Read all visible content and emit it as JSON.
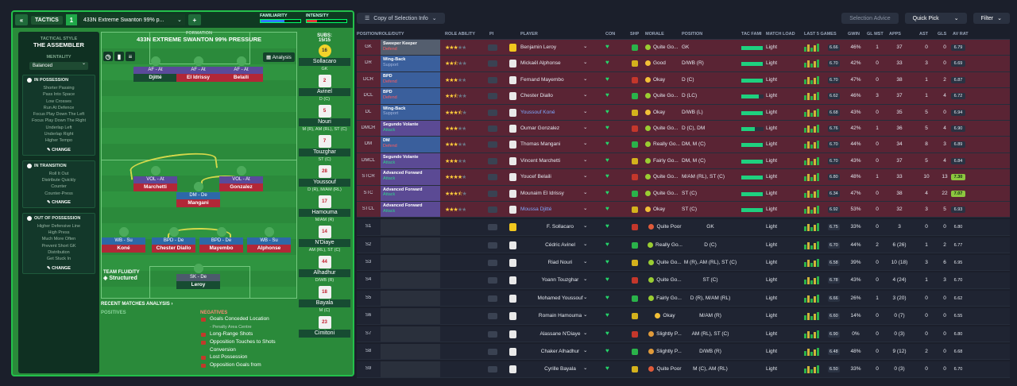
{
  "header": {
    "back": "«",
    "tactics_label": "TACTICS",
    "tactic_number": "1",
    "tactic_name": "433N Extreme Swanton 99% p...",
    "add": "+",
    "familiarity": "FAMILIARITY",
    "intensity": "INTENSITY"
  },
  "sidebar": {
    "style_label": "TACTICAL STYLE",
    "style_value": "THE ASSEMBLER",
    "mentality_label": "MENTALITY",
    "mentality_value": "Balanced",
    "in_possession": {
      "title": "IN POSSESSION",
      "items": [
        "Shorter Passing",
        "Pass Into Space",
        "Low Crosses",
        "Run At Defence",
        "Focus Play Down The Left",
        "Focus Play Down The Right",
        "Underlap Left",
        "Underlap Right",
        "Higher Tempo"
      ],
      "change": "CHANGE"
    },
    "in_transition": {
      "title": "IN TRANSITION",
      "items": [
        "Roll It Out",
        "Distribute Quickly",
        "Counter",
        "Counter-Press"
      ],
      "change": "CHANGE"
    },
    "out_of_possession": {
      "title": "OUT OF POSSESSION",
      "items": [
        "Higher Defensive Line",
        "High Press",
        "Much More Often",
        "Prevent Short GK",
        "Distribution",
        "Get Stuck In"
      ],
      "change": "CHANGE"
    }
  },
  "formation": {
    "label": "FORMATION",
    "name": "433N EXTREME SWANTON 99% PRESSURE",
    "analysis": "Analysis",
    "team_fluidity_label": "TEAM FLUIDITY",
    "team_fluidity": "Structured"
  },
  "pitch_players": [
    {
      "role": "AF - At",
      "name": "Djitté"
    },
    {
      "role": "AF - At",
      "name": "El Idrissy"
    },
    {
      "role": "AF - At",
      "name": "Belaili"
    },
    {
      "role": "VOL - At",
      "name": "Marchetti"
    },
    {
      "role": "DM - De",
      "name": "Mangani"
    },
    {
      "role": "VOL - At",
      "name": "Gonzalez"
    },
    {
      "role": "WB - Su",
      "name": "Koné"
    },
    {
      "role": "BPD - De",
      "name": "Chester Diallo"
    },
    {
      "role": "BPD - De",
      "name": "Mayembo"
    },
    {
      "role": "WB - Su",
      "name": "Alphonse"
    },
    {
      "role": "SK - De",
      "name": "Leroy"
    }
  ],
  "subs": {
    "label": "SUBS:",
    "count": "15/15",
    "list": [
      {
        "num": "16",
        "name": "Sollacaro",
        "pos": "GK"
      },
      {
        "num": "2",
        "name": "Avinel",
        "pos": "D (C)"
      },
      {
        "num": "5",
        "name": "Nouri",
        "pos": "M (R), AM (RL), ST (C)"
      },
      {
        "num": "7",
        "name": "Touzghar",
        "pos": "ST (C)"
      },
      {
        "num": "28",
        "name": "Youssouf",
        "pos": "D (R), M/AM (RL)"
      },
      {
        "num": "17",
        "name": "Hamouma",
        "pos": "M/AM (R)"
      },
      {
        "num": "14",
        "name": "N'Diaye",
        "pos": "AM (RL), ST (C)"
      },
      {
        "num": "44",
        "name": "Alhadhur",
        "pos": "D/WB (R)"
      },
      {
        "num": "18",
        "name": "Bayala",
        "pos": "M (C)"
      },
      {
        "num": "23",
        "name": "Cimitoni",
        "pos": ""
      }
    ]
  },
  "recent": {
    "title": "RECENT MATCHES ANALYSIS",
    "positives": "POSITIVES",
    "negatives": "NEGATIVES",
    "neg_items": [
      "Goals Conceded Location",
      "- Penalty Area Centre",
      "Long-Range Shots",
      "Opposition Touches to Shots",
      "Conversion",
      "Lost Possession",
      "Opposition Goals from"
    ]
  },
  "right_top": {
    "view": "Copy of Selection Info",
    "selection_advice": "Selection Advice",
    "quick_pick": "Quick Pick",
    "filter": "Filter"
  },
  "columns": [
    "POSITION/ROLE/DUTY",
    "ROLE ABILITY",
    "PI",
    "PLAYER",
    "CON",
    "SHP",
    "MORALE",
    "POSITION",
    "TAC FAMI",
    "MATCH LOAD",
    "LAST 5 GAMES",
    "GWIN",
    "GL MST",
    "APPS",
    "AST",
    "GLS",
    "AV RAT"
  ],
  "rows": [
    {
      "pos": "GK",
      "role": "Sweeper Keeper",
      "duty": "Defend",
      "dcls": "def",
      "stars": 3,
      "name": "Benjamin Leroy",
      "morale": "Quite Go...",
      "mc": "#9acd32",
      "ppos": "GK",
      "tac": 0.95,
      "load": "Light",
      "av5": "6.66",
      "gwin": "46%",
      "glm": "1",
      "apps": "37",
      "ast": "0",
      "gls": "0",
      "rat": "6.79",
      "rc": ""
    },
    {
      "pos": "DR",
      "role": "Wing-Back",
      "duty": "Support",
      "dcls": "sup",
      "stars": 2.5,
      "name": "Mickaël Alphonse",
      "morale": "Good",
      "mc": "#f2c037",
      "ppos": "D/WB (R)",
      "tac": 0.95,
      "load": "Light",
      "av5": "6.70",
      "gwin": "42%",
      "glm": "0",
      "apps": "33",
      "ast": "3",
      "gls": "0",
      "rat": "6.69",
      "rc": ""
    },
    {
      "pos": "DCR",
      "role": "BPD",
      "duty": "Defend",
      "dcls": "def",
      "stars": 3,
      "name": "Fernand Mayembo",
      "morale": "Okay",
      "mc": "#f2c037",
      "ppos": "D (C)",
      "tac": 0.95,
      "load": "Light",
      "av5": "6.70",
      "gwin": "47%",
      "glm": "0",
      "apps": "38",
      "ast": "1",
      "gls": "2",
      "rat": "6.87",
      "rc": ""
    },
    {
      "pos": "DCL",
      "role": "BPD",
      "duty": "Defend",
      "dcls": "def",
      "stars": 2.5,
      "name": "Chester Diallo",
      "morale": "Quite Go...",
      "mc": "#9acd32",
      "ppos": "D (LC)",
      "tac": 0.8,
      "load": "Light",
      "av5": "6.62",
      "gwin": "46%",
      "glm": "3",
      "apps": "37",
      "ast": "1",
      "gls": "4",
      "rat": "6.72",
      "rc": ""
    },
    {
      "pos": "DL",
      "role": "Wing-Back",
      "duty": "Support",
      "dcls": "sup",
      "stars": 3.5,
      "name": "Youssouf Koné",
      "lnk": true,
      "morale": "Okay",
      "mc": "#f2c037",
      "ppos": "D/WB (L)",
      "tac": 0.95,
      "load": "Light",
      "av5": "6.68",
      "gwin": "43%",
      "glm": "0",
      "apps": "35",
      "ast": "5",
      "gls": "0",
      "rat": "6.94",
      "rc": ""
    },
    {
      "pos": "DMCR",
      "role": "Segundo Volante",
      "duty": "Attack",
      "dcls": "att",
      "stars": 3,
      "name": "Oumar Gonzalez",
      "morale": "Quite Go...",
      "mc": "#9acd32",
      "ppos": "D (C), DM",
      "tac": 0.6,
      "load": "Light",
      "av5": "6.76",
      "gwin": "42%",
      "glm": "1",
      "apps": "36",
      "ast": "5",
      "gls": "4",
      "rat": "6.90",
      "rc": ""
    },
    {
      "pos": "DM",
      "role": "DM",
      "duty": "Defend",
      "dcls": "def",
      "stars": 3,
      "name": "Thomas Mangani",
      "morale": "Really Go...",
      "mc": "#9acd32",
      "ppos": "DM, M (C)",
      "tac": 0.95,
      "load": "Light",
      "av5": "6.70",
      "gwin": "44%",
      "glm": "0",
      "apps": "34",
      "ast": "8",
      "gls": "3",
      "rat": "6.89",
      "rc": ""
    },
    {
      "pos": "DMCL",
      "role": "Segundo Volante",
      "duty": "Attack",
      "dcls": "att",
      "stars": 3,
      "name": "Vincent Marchetti",
      "morale": "Fairly Go...",
      "mc": "#9acd32",
      "ppos": "DM, M (C)",
      "tac": 0.95,
      "load": "Light",
      "av5": "6.70",
      "gwin": "43%",
      "glm": "0",
      "apps": "37",
      "ast": "5",
      "gls": "4",
      "rat": "6.84",
      "rc": ""
    },
    {
      "pos": "STCR",
      "role": "Advanced Forward",
      "duty": "Attack",
      "dcls": "att",
      "stars": 4,
      "name": "Youcef Belaili",
      "morale": "Quite Go...",
      "mc": "#9acd32",
      "ppos": "M/AM (RL), ST (C)",
      "tac": 0.95,
      "load": "Light",
      "av5": "6.80",
      "gwin": "48%",
      "glm": "1",
      "apps": "33",
      "ast": "10",
      "gls": "13",
      "rat": "7.30",
      "rc": "hi"
    },
    {
      "pos": "STC",
      "role": "Advanced Forward",
      "duty": "Attack",
      "dcls": "att",
      "stars": 3.5,
      "name": "Mounaim El Idrissy",
      "morale": "Quite Go...",
      "mc": "#9acd32",
      "ppos": "ST (C)",
      "tac": 0.95,
      "load": "Light",
      "av5": "6.34",
      "gwin": "47%",
      "glm": "0",
      "apps": "38",
      "ast": "4",
      "gls": "22",
      "rat": "7.07",
      "rc": "hi"
    },
    {
      "pos": "STCL",
      "role": "Advanced Forward",
      "duty": "Attack",
      "dcls": "att",
      "stars": 3,
      "name": "Moussa Djitté",
      "lnk": true,
      "morale": "Okay",
      "mc": "#f2c037",
      "ppos": "ST (C)",
      "tac": 0.95,
      "load": "Light",
      "av5": "6.92",
      "gwin": "53%",
      "glm": "0",
      "apps": "32",
      "ast": "3",
      "gls": "5",
      "rat": "6.93",
      "rc": ""
    },
    {
      "pos": "S1",
      "role": "",
      "duty": "",
      "dcls": "",
      "stars": 0,
      "name": "F. Sollacaro",
      "morale": "Quite Poor",
      "mc": "#e05b3a",
      "ppos": "GK",
      "tac": 0,
      "load": "Light",
      "av5": "6.75",
      "gwin": "33%",
      "glm": "0",
      "apps": "3",
      "ast": "0",
      "gls": "0",
      "rat": "6.80",
      "rc": "nb"
    },
    {
      "pos": "S2",
      "role": "",
      "duty": "",
      "dcls": "",
      "stars": 0,
      "name": "Cédric Avinel",
      "morale": "Really Go...",
      "mc": "#9acd32",
      "ppos": "D (C)",
      "tac": 0,
      "load": "Light",
      "av5": "6.70",
      "gwin": "44%",
      "glm": "2",
      "apps": "6 (26)",
      "ast": "1",
      "gls": "2",
      "rat": "6.77",
      "rc": "nb"
    },
    {
      "pos": "S3",
      "role": "",
      "duty": "",
      "dcls": "",
      "stars": 0,
      "name": "Riad Nouri",
      "morale": "Quite Go...",
      "mc": "#9acd32",
      "ppos": "M (R), AM (RL), ST (C)",
      "tac": 0,
      "load": "Light",
      "av5": "6.58",
      "gwin": "39%",
      "glm": "0",
      "apps": "10 (18)",
      "ast": "3",
      "gls": "6",
      "rat": "6.95",
      "rc": "nb"
    },
    {
      "pos": "S4",
      "role": "",
      "duty": "",
      "dcls": "",
      "stars": 0,
      "name": "Yoann Touzghar",
      "morale": "Quite Go...",
      "mc": "#9acd32",
      "ppos": "ST (C)",
      "tac": 0,
      "load": "Light",
      "av5": "6.78",
      "gwin": "43%",
      "glm": "0",
      "apps": "4 (24)",
      "ast": "1",
      "gls": "3",
      "rat": "6.70",
      "rc": "nb"
    },
    {
      "pos": "S5",
      "role": "",
      "duty": "",
      "dcls": "",
      "stars": 0,
      "name": "Mohamed Youssouf",
      "morale": "Fairly Go...",
      "mc": "#9acd32",
      "ppos": "D (R), M/AM (RL)",
      "tac": 0,
      "load": "Light",
      "av5": "6.66",
      "gwin": "26%",
      "glm": "1",
      "apps": "3 (20)",
      "ast": "0",
      "gls": "0",
      "rat": "6.62",
      "rc": "nb"
    },
    {
      "pos": "S6",
      "role": "",
      "duty": "",
      "dcls": "",
      "stars": 0,
      "name": "Romain Hamouma",
      "morale": "Okay",
      "mc": "#f2c037",
      "ppos": "M/AM (R)",
      "tac": 0,
      "load": "Light",
      "av5": "6.60",
      "gwin": "14%",
      "glm": "0",
      "apps": "0 (7)",
      "ast": "0",
      "gls": "0",
      "rat": "6.55",
      "rc": "nb"
    },
    {
      "pos": "S7",
      "role": "",
      "duty": "",
      "dcls": "",
      "stars": 0,
      "name": "Alassane N'Diaye",
      "morale": "Slightly P...",
      "mc": "#e09a3a",
      "ppos": "AM (RL), ST (C)",
      "tac": 0,
      "load": "Light",
      "av5": "6.90",
      "gwin": "0%",
      "glm": "0",
      "apps": "0 (3)",
      "ast": "0",
      "gls": "0",
      "rat": "6.80",
      "rc": "nb"
    },
    {
      "pos": "S8",
      "role": "",
      "duty": "",
      "dcls": "",
      "stars": 0,
      "name": "Chaker Alhadhur",
      "morale": "Slightly P...",
      "mc": "#e09a3a",
      "ppos": "D/WB (R)",
      "tac": 0,
      "load": "Light",
      "av5": "6.48",
      "gwin": "48%",
      "glm": "0",
      "apps": "9 (12)",
      "ast": "2",
      "gls": "0",
      "rat": "6.68",
      "rc": "nb"
    },
    {
      "pos": "S9",
      "role": "",
      "duty": "",
      "dcls": "",
      "stars": 0,
      "name": "Cyrille Bayala",
      "morale": "Quite Poor",
      "mc": "#e05b3a",
      "ppos": "M (C), AM (RL)",
      "tac": 0,
      "load": "Light",
      "av5": "6.50",
      "gwin": "33%",
      "glm": "0",
      "apps": "0 (3)",
      "ast": "0",
      "gls": "0",
      "rat": "6.70",
      "rc": "nb"
    }
  ]
}
